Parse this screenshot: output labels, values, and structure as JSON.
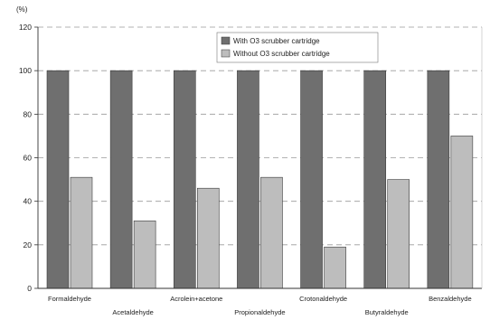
{
  "chart_data": {
    "type": "bar",
    "ylabel": "(%)",
    "ylim": [
      0,
      120
    ],
    "yticks": [
      "0",
      "20",
      "40",
      "60",
      "80",
      "100",
      "120"
    ],
    "categories": [
      "Formaldehyde",
      "Acetaldehyde",
      "Acrolein+acetone",
      "Propionaldehyde",
      "Crotonaldehyde",
      "Butyraldehyde",
      "Benzaldehyde"
    ],
    "series": [
      {
        "name": "With O3 scrubber cartridge",
        "values": [
          100,
          100,
          100,
          100,
          100,
          100,
          100
        ],
        "color": "#6f6f6f"
      },
      {
        "name": "Without O3 scrubber cartridge",
        "values": [
          51,
          31,
          46,
          51,
          19,
          50,
          70
        ],
        "color": "#bdbdbd"
      }
    ],
    "grid": true,
    "legend": "top-right"
  }
}
